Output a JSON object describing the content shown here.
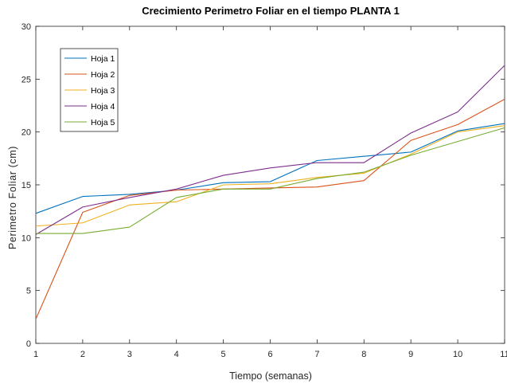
{
  "chart_data": {
    "type": "line",
    "title": "Crecimiento Perimetro Foliar en el tiempo PLANTA 1",
    "xlabel": "Tiempo (semanas)",
    "ylabel": "Perimetro Foliar (cm)",
    "xlim": [
      1,
      11
    ],
    "ylim": [
      0,
      30
    ],
    "x": [
      1,
      2,
      3,
      4,
      5,
      6,
      7,
      8,
      9,
      10,
      11
    ],
    "xticks": [
      "1",
      "2",
      "3",
      "4",
      "5",
      "6",
      "7",
      "8",
      "9",
      "10",
      "11"
    ],
    "yticks": [
      "0",
      "5",
      "10",
      "15",
      "20",
      "25",
      "30"
    ],
    "grid": false,
    "legend_position": "top-left",
    "series": [
      {
        "name": "Hoja 1",
        "color": "#0072BD",
        "values": [
          12.3,
          13.9,
          14.1,
          14.5,
          15.2,
          15.3,
          17.3,
          17.7,
          18.1,
          20.1,
          20.8
        ]
      },
      {
        "name": "Hoja 2",
        "color": "#D95319",
        "values": [
          2.3,
          12.4,
          14.0,
          14.5,
          14.6,
          14.7,
          14.8,
          15.4,
          19.2,
          20.7,
          23.1
        ]
      },
      {
        "name": "Hoja 3",
        "color": "#EDB120",
        "values": [
          11.1,
          11.4,
          13.1,
          13.4,
          15.0,
          15.1,
          15.7,
          16.1,
          17.9,
          20.0,
          20.6
        ]
      },
      {
        "name": "Hoja 4",
        "color": "#7E2F8E",
        "values": [
          10.3,
          12.9,
          13.8,
          14.6,
          15.9,
          16.6,
          17.1,
          17.1,
          19.9,
          21.9,
          26.3
        ]
      },
      {
        "name": "Hoja 5",
        "color": "#77AC30",
        "values": [
          10.4,
          10.4,
          11.0,
          13.8,
          14.6,
          14.6,
          15.6,
          16.2,
          17.8,
          19.1,
          20.4
        ]
      }
    ]
  }
}
